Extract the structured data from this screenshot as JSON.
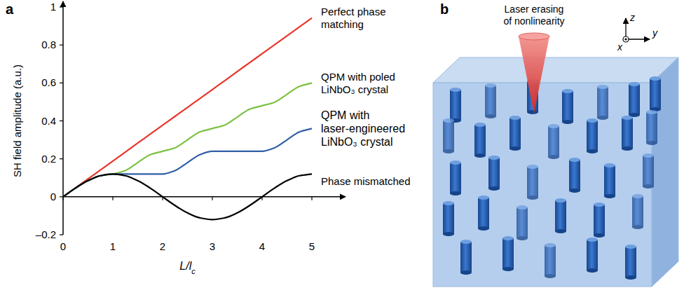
{
  "panel_labels": [
    "a",
    "b"
  ],
  "chart_data": {
    "type": "line",
    "x_label": "L/lc",
    "y_label": "SH field amplitude (a.u.)",
    "x": [
      0,
      0.25,
      0.5,
      0.75,
      1,
      1.25,
      1.5,
      1.75,
      2,
      2.25,
      2.5,
      2.75,
      3,
      3.25,
      3.5,
      3.75,
      4,
      4.25,
      4.5,
      4.75,
      5
    ],
    "xlim": [
      0,
      5
    ],
    "xticks": [
      0,
      1,
      2,
      3,
      4,
      5
    ],
    "ylim": [
      -0.2,
      1
    ],
    "yticks": [
      {
        "value": -0.2,
        "label": "–0.2"
      },
      0,
      0.2,
      0.4,
      0.6,
      0.8,
      1
    ],
    "grid": false,
    "legend": "right",
    "series": [
      {
        "name": "Perfect phase matching",
        "color": "#e8352a",
        "values": [
          0,
          0.047,
          0.094,
          0.141,
          0.188,
          0.235,
          0.283,
          0.33,
          0.377,
          0.424,
          0.471,
          0.518,
          0.565,
          0.612,
          0.66,
          0.707,
          0.754,
          0.801,
          0.848,
          0.895,
          0.942
        ]
      },
      {
        "name": "QPM with poled LiNbO₃ crystal",
        "color": "#7cc142",
        "values": [
          0,
          0.046,
          0.085,
          0.111,
          0.12,
          0.138,
          0.18,
          0.222,
          0.24,
          0.258,
          0.3,
          0.342,
          0.36,
          0.378,
          0.42,
          0.462,
          0.48,
          0.498,
          0.54,
          0.582,
          0.6
        ]
      },
      {
        "name": "QPM with laser-engineered LiNbO₃ crystal",
        "color": "#2f5fa7",
        "values": [
          0,
          0.046,
          0.085,
          0.111,
          0.12,
          0.12,
          0.12,
          0.12,
          0.12,
          0.138,
          0.18,
          0.222,
          0.24,
          0.24,
          0.24,
          0.24,
          0.24,
          0.258,
          0.3,
          0.342,
          0.36
        ]
      },
      {
        "name": "Phase mismatched",
        "color": "#000000",
        "values": [
          0,
          0.046,
          0.085,
          0.111,
          0.12,
          0.111,
          0.085,
          0.046,
          0,
          -0.046,
          -0.085,
          -0.111,
          -0.12,
          -0.111,
          -0.085,
          -0.046,
          0,
          0.046,
          0.085,
          0.111,
          0.12
        ]
      }
    ]
  },
  "diagram": {
    "title": "Laser erasing of nonlinearity",
    "axes": [
      "z",
      "y",
      "x"
    ]
  }
}
